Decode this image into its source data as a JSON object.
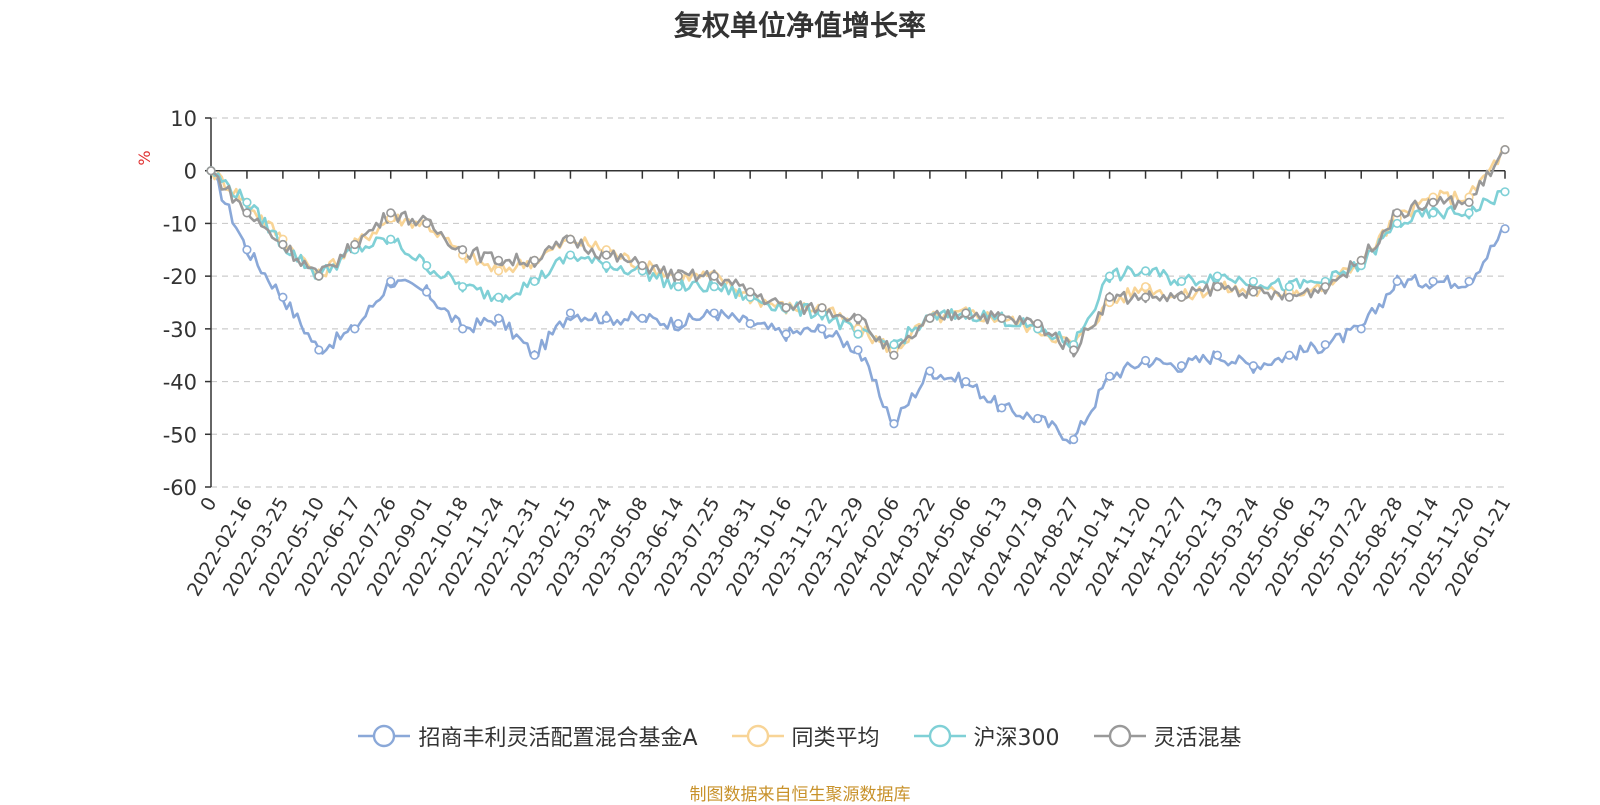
{
  "chart_data": {
    "type": "line",
    "title": "复权单位净值增长率",
    "ylabel": "%",
    "ylim": [
      -60,
      10
    ],
    "yticks": [
      10,
      0,
      -10,
      -20,
      -30,
      -40,
      -50,
      -60
    ],
    "grid": true,
    "legend_position": "bottom-center",
    "categories": [
      "0",
      "2022-02-16",
      "2022-03-25",
      "2022-05-10",
      "2022-06-17",
      "2022-07-26",
      "2022-09-01",
      "2022-10-18",
      "2022-11-24",
      "2022-12-31",
      "2023-02-15",
      "2023-03-24",
      "2023-05-08",
      "2023-06-14",
      "2023-07-25",
      "2023-08-31",
      "2023-10-16",
      "2023-11-22",
      "2023-12-29",
      "2024-02-06",
      "2024-03-22",
      "2024-05-06",
      "2024-06-13",
      "2024-07-19",
      "2024-08-27",
      "2024-10-14",
      "2024-11-20",
      "2024-12-27",
      "2025-02-13",
      "2025-03-24",
      "2025-05-06",
      "2025-06-13",
      "2025-07-22",
      "2025-08-28",
      "2025-10-14",
      "2025-11-20",
      "2026-01-21"
    ],
    "series": [
      {
        "name": "招商丰利灵活配置混合基金A",
        "color": "#8aa8d8",
        "values": [
          0,
          -15,
          -24,
          -34,
          -30,
          -21,
          -23,
          -30,
          -28,
          -35,
          -27,
          -28,
          -28,
          -29,
          -27,
          -29,
          -31,
          -30,
          -34,
          -48,
          -38,
          -40,
          -45,
          -47,
          -51,
          -39,
          -36,
          -37,
          -35,
          -37,
          -35,
          -33,
          -30,
          -21,
          -21,
          -21,
          -11
        ]
      },
      {
        "name": "同类平均",
        "color": "#f8d496",
        "values": [
          0,
          -6,
          -13,
          -20,
          -14,
          -9,
          -10,
          -16,
          -19,
          -17,
          -13,
          -15,
          -18,
          -20,
          -20,
          -24,
          -26,
          -26,
          -30,
          -34,
          -28,
          -27,
          -28,
          -30,
          -33,
          -25,
          -22,
          -24,
          -22,
          -23,
          -23,
          -22,
          -17,
          -9,
          -5,
          -5,
          4
        ]
      },
      {
        "name": "沪深300",
        "color": "#7fd0d6",
        "values": [
          0,
          -6,
          -14,
          -20,
          -15,
          -13,
          -18,
          -22,
          -24,
          -21,
          -16,
          -18,
          -19,
          -22,
          -22,
          -24,
          -26,
          -27,
          -31,
          -33,
          -28,
          -27,
          -28,
          -30,
          -33,
          -20,
          -19,
          -21,
          -20,
          -21,
          -22,
          -21,
          -18,
          -10,
          -8,
          -8,
          -4
        ]
      },
      {
        "name": "灵活混基",
        "color": "#999999",
        "values": [
          0,
          -8,
          -14,
          -20,
          -14,
          -8,
          -10,
          -15,
          -17,
          -17,
          -13,
          -16,
          -18,
          -20,
          -20,
          -23,
          -26,
          -26,
          -28,
          -35,
          -28,
          -27,
          -28,
          -29,
          -34,
          -24,
          -24,
          -24,
          -22,
          -23,
          -24,
          -22,
          -17,
          -8,
          -6,
          -6,
          4
        ]
      }
    ]
  },
  "source_note": "制图数据来自恒生聚源数据库"
}
